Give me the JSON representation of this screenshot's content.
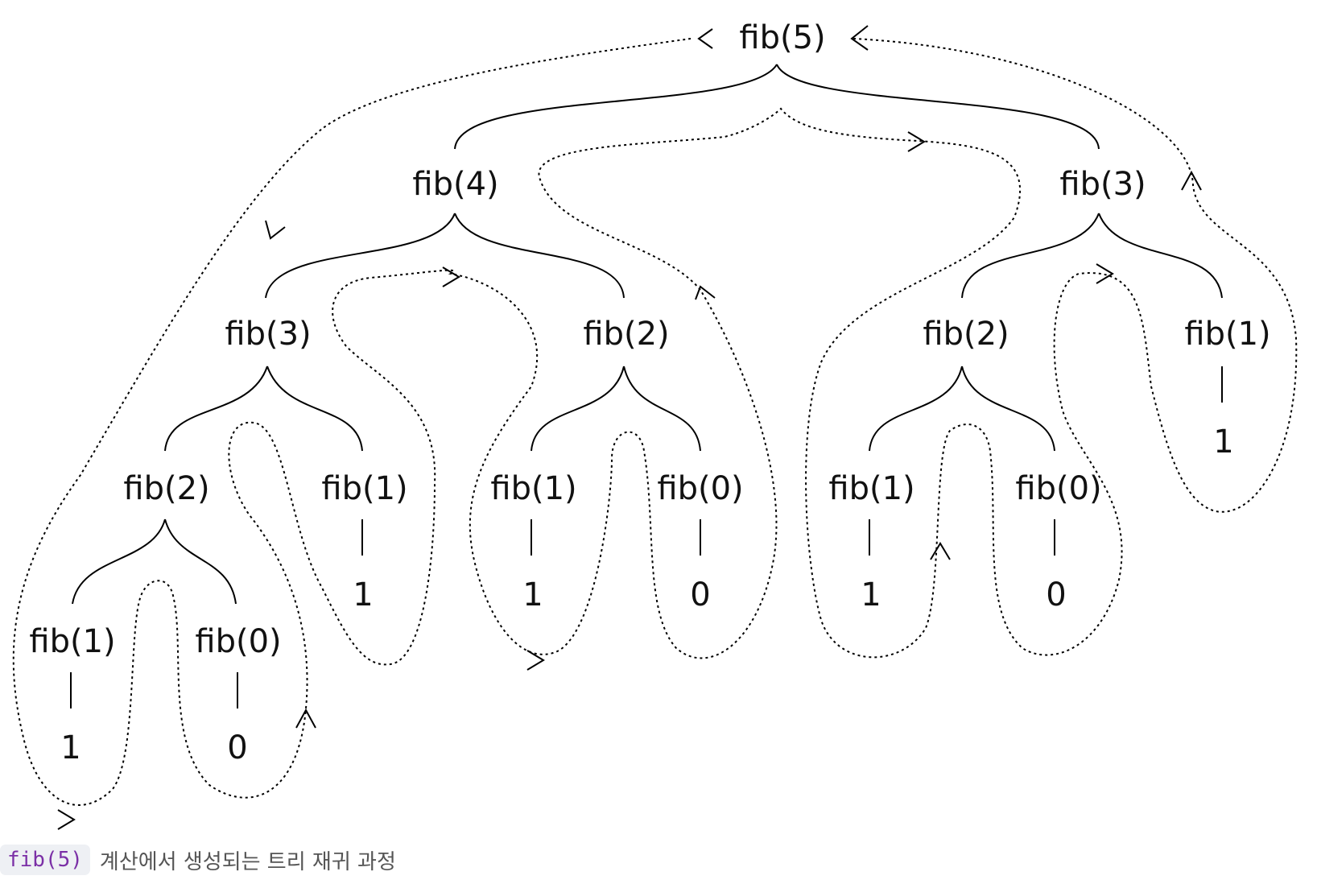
{
  "diagram": {
    "nodes": {
      "n5": "fib(5)",
      "n4": "fib(4)",
      "n3r": "fib(3)",
      "n3": "fib(3)",
      "n2a": "fib(2)",
      "n2b": "fib(2)",
      "n1r": "fib(1)",
      "n2": "fib(2)",
      "n1a": "fib(1)",
      "n1b": "fib(1)",
      "n0b": "fib(0)",
      "n1c": "fib(1)",
      "n0c": "fib(0)",
      "n1": "fib(1)",
      "n0": "fib(0)"
    },
    "leaves": {
      "l1": "1",
      "l0": "0",
      "l1a": "1",
      "l1b": "1",
      "l0b": "0",
      "l1c": "1",
      "l0c": "0",
      "l1r": "1"
    }
  },
  "caption": {
    "code": "fib(5)",
    "text": "계산에서 생성되는 트리 재귀 과정"
  }
}
